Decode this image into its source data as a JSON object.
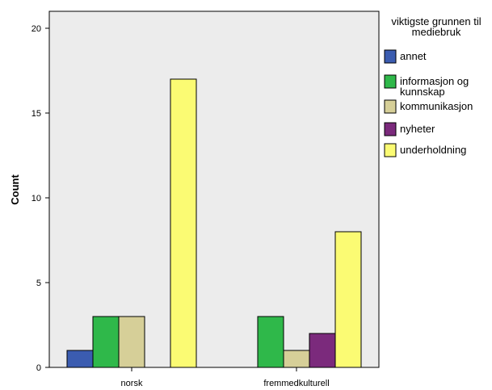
{
  "chart_data": {
    "type": "bar",
    "title": "",
    "xlabel": "",
    "ylabel": "Count",
    "ylim": [
      0,
      21
    ],
    "yticks": [
      0,
      5,
      10,
      15,
      20
    ],
    "grid": false,
    "legend_position": "right",
    "legend_title_lines": [
      "viktigste grunnen til",
      "mediebruk"
    ],
    "categories": [
      "norsk",
      "fremmedkulturell"
    ],
    "series": [
      {
        "name": "annet",
        "label_lines": [
          "annet"
        ],
        "color": "#3b5cb0",
        "values": [
          1,
          0
        ]
      },
      {
        "name": "informasjon og kunnskap",
        "label_lines": [
          "informasjon og",
          "kunnskap"
        ],
        "color": "#2fb84a",
        "values": [
          3,
          3
        ]
      },
      {
        "name": "kommunikasjon",
        "label_lines": [
          "kommunikasjon"
        ],
        "color": "#d6cf98",
        "values": [
          3,
          1
        ]
      },
      {
        "name": "nyheter",
        "label_lines": [
          "nyheter"
        ],
        "color": "#7b2a7c",
        "values": [
          0,
          2
        ]
      },
      {
        "name": "underholdning",
        "label_lines": [
          "underholdning"
        ],
        "color": "#fbfb73",
        "values": [
          17,
          8
        ]
      }
    ]
  }
}
